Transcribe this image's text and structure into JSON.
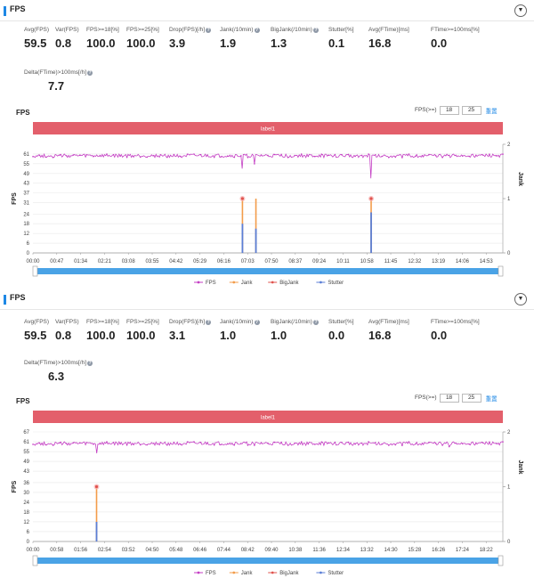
{
  "panels": [
    {
      "title": "FPS",
      "metrics": [
        {
          "label": "Avg(FPS)",
          "value": "59.5",
          "help": false
        },
        {
          "label": "Var(FPS)",
          "value": "0.8",
          "help": false
        },
        {
          "label": "FPS>=18[%]",
          "value": "100.0",
          "help": false
        },
        {
          "label": "FPS>=25[%]",
          "value": "100.0",
          "help": false
        },
        {
          "label": "Drop(FPS)[/h]",
          "value": "3.9",
          "help": true
        },
        {
          "label": "Jank(/10min)",
          "value": "1.9",
          "help": true
        },
        {
          "label": "BigJank(/10min)",
          "value": "1.3",
          "help": true
        },
        {
          "label": "Stutter[%]",
          "value": "0.1",
          "help": false
        },
        {
          "label": "Avg(FTime)[ms]",
          "value": "16.8",
          "help": false
        },
        {
          "label": "FTime>=100ms[%]",
          "value": "0.0",
          "help": false
        }
      ],
      "delta": {
        "label": "Delta(FTime)>100ms[/h]",
        "value": "7.7"
      },
      "chart_title": "FPS",
      "fps_ctrl": {
        "label": "FPS(>=)",
        "v1": "18",
        "v2": "25",
        "apply": "重置"
      },
      "chart_data": {
        "type": "line",
        "banner": "label1",
        "y_left_label": "FPS",
        "y_right_label": "Jank",
        "y_ticks": [
          "0",
          "6",
          "12",
          "18",
          "24",
          "31",
          "37",
          "43",
          "49",
          "55",
          "61"
        ],
        "y_right_ticks": [
          "0",
          "1",
          "2"
        ],
        "ylim": [
          0,
          67
        ],
        "y_right_lim": [
          0,
          2
        ],
        "x_ticks": [
          "00:00",
          "00:47",
          "01:34",
          "02:21",
          "03:08",
          "03:55",
          "04:42",
          "05:29",
          "06:16",
          "07:03",
          "07:50",
          "08:37",
          "09:24",
          "10:11",
          "10:58",
          "11:45",
          "12:32",
          "13:19",
          "14:06",
          "14:53"
        ],
        "x_range_minutes": [
          0,
          15.7
        ],
        "fps_baseline": 60,
        "fps_dips": [
          {
            "t": 7.0,
            "fps": 52
          },
          {
            "t": 7.4,
            "fps": 55
          },
          {
            "t": 11.3,
            "fps": 46
          }
        ],
        "jank_events": [
          {
            "t": 7.0,
            "value": 1,
            "big": true
          },
          {
            "t": 7.45,
            "value": 1,
            "big": false
          },
          {
            "t": 11.3,
            "value": 1,
            "big": true
          }
        ],
        "stutter_events": [
          {
            "t": 7.0,
            "fps": 18
          },
          {
            "t": 7.45,
            "fps": 15
          },
          {
            "t": 11.3,
            "fps": 25
          }
        ],
        "legend": [
          {
            "name": "FPS",
            "color": "#c43ec4"
          },
          {
            "name": "Jank",
            "color": "#f39c4a"
          },
          {
            "name": "BigJank",
            "color": "#e0544f"
          },
          {
            "name": "Stutter",
            "color": "#5b7fd6"
          }
        ]
      }
    },
    {
      "title": "FPS",
      "metrics": [
        {
          "label": "Avg(FPS)",
          "value": "59.5",
          "help": false
        },
        {
          "label": "Var(FPS)",
          "value": "0.8",
          "help": false
        },
        {
          "label": "FPS>=18[%]",
          "value": "100.0",
          "help": false
        },
        {
          "label": "FPS>=25[%]",
          "value": "100.0",
          "help": false
        },
        {
          "label": "Drop(FPS)[/h]",
          "value": "3.1",
          "help": true
        },
        {
          "label": "Jank(/10min)",
          "value": "1.0",
          "help": true
        },
        {
          "label": "BigJank(/10min)",
          "value": "1.0",
          "help": true
        },
        {
          "label": "Stutter[%]",
          "value": "0.0",
          "help": false
        },
        {
          "label": "Avg(FTime)[ms]",
          "value": "16.8",
          "help": false
        },
        {
          "label": "FTime>=100ms[%]",
          "value": "0.0",
          "help": false
        }
      ],
      "delta": {
        "label": "Delta(FTime)>100ms[/h]",
        "value": "6.3"
      },
      "chart_title": "FPS",
      "fps_ctrl": {
        "label": "FPS(>=)",
        "v1": "18",
        "v2": "25",
        "apply": "重置"
      },
      "chart_data": {
        "type": "line",
        "banner": "label1",
        "y_left_label": "FPS",
        "y_right_label": "Jank",
        "y_ticks": [
          "0",
          "6",
          "12",
          "18",
          "24",
          "30",
          "36",
          "43",
          "49",
          "55",
          "61",
          "67"
        ],
        "y_right_ticks": [
          "0",
          "1",
          "2"
        ],
        "ylim": [
          0,
          67
        ],
        "y_right_lim": [
          0,
          2
        ],
        "x_ticks": [
          "00:00",
          "00:58",
          "01:56",
          "02:54",
          "03:52",
          "04:50",
          "05:48",
          "06:46",
          "07:44",
          "08:42",
          "09:40",
          "10:38",
          "11:36",
          "12:34",
          "13:32",
          "14:30",
          "15:28",
          "16:26",
          "17:24",
          "18:22"
        ],
        "x_range_minutes": [
          0,
          19.2
        ],
        "fps_baseline": 60,
        "fps_dips": [
          {
            "t": 2.6,
            "fps": 54
          },
          {
            "t": 17.0,
            "fps": 58
          }
        ],
        "jank_events": [
          {
            "t": 2.6,
            "value": 1,
            "big": true
          }
        ],
        "stutter_events": [
          {
            "t": 2.6,
            "fps": 12
          }
        ],
        "legend": [
          {
            "name": "FPS",
            "color": "#c43ec4"
          },
          {
            "name": "Jank",
            "color": "#f39c4a"
          },
          {
            "name": "BigJank",
            "color": "#e0544f"
          },
          {
            "name": "Stutter",
            "color": "#5b7fd6"
          }
        ]
      }
    }
  ]
}
